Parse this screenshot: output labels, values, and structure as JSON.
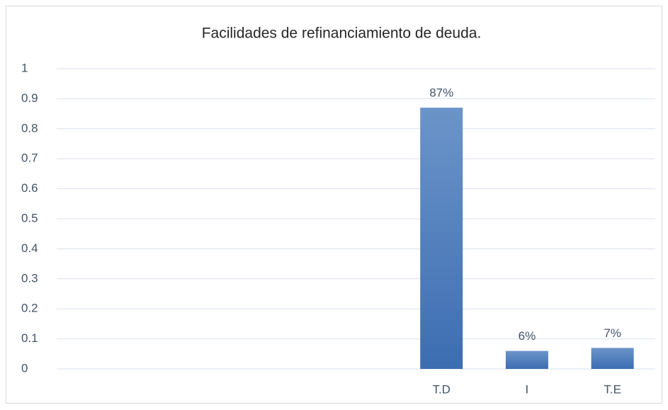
{
  "chart_data": {
    "type": "bar",
    "title": "Facilidades de refinanciamiento de deuda.",
    "categories": [
      null,
      null,
      null,
      null,
      "T.D",
      "I",
      "T.E"
    ],
    "values": [
      null,
      null,
      null,
      null,
      0.87,
      0.06,
      0.07
    ],
    "value_labels": [
      null,
      null,
      null,
      null,
      "87%",
      "6%",
      "7%"
    ],
    "color": "#4472c4",
    "ylim": [
      0,
      1
    ],
    "yticks": [
      0,
      0.1,
      0.2,
      0.3,
      0.4,
      0.5,
      0.6,
      0.7,
      0.8,
      0.9,
      1
    ],
    "grid": true
  }
}
